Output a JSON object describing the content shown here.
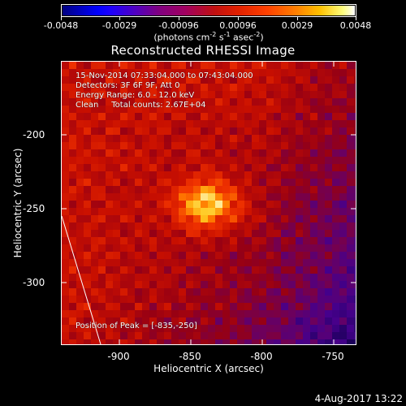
{
  "colorbar": {
    "labels": [
      "-0.0048",
      "-0.0029",
      "-0.00096",
      "0.00096",
      "0.0029",
      "0.0048"
    ],
    "units_prefix": "(photons cm",
    "units_exp1": "-2",
    "units_mid": " s",
    "units_exp2": "-1",
    "units_mid2": " asec",
    "units_exp3": "-2",
    "units_suffix": ")"
  },
  "title": "Reconstructed RHESSI Image",
  "annotations": {
    "time_range": "15-Nov-2014 07:33:04.000 to 07:43:04.000",
    "detectors": "Detectors: 3F 6F 9F, Att 0",
    "energy": "Energy Range: 6.0 - 12.0 keV",
    "clean": "Clean     Total counts: 2.67E+04",
    "peak": "Position of Peak = [-835,-250]"
  },
  "x_axis": {
    "label": "Heliocentric X (arcsec)",
    "ticks": [
      "-900",
      "-850",
      "-800",
      "-750"
    ]
  },
  "y_axis": {
    "label": "Heliocentric Y (arcsec)",
    "ticks": [
      "-200",
      "-250",
      "-300"
    ]
  },
  "date_stamp": "4-Aug-2017 13:22"
}
